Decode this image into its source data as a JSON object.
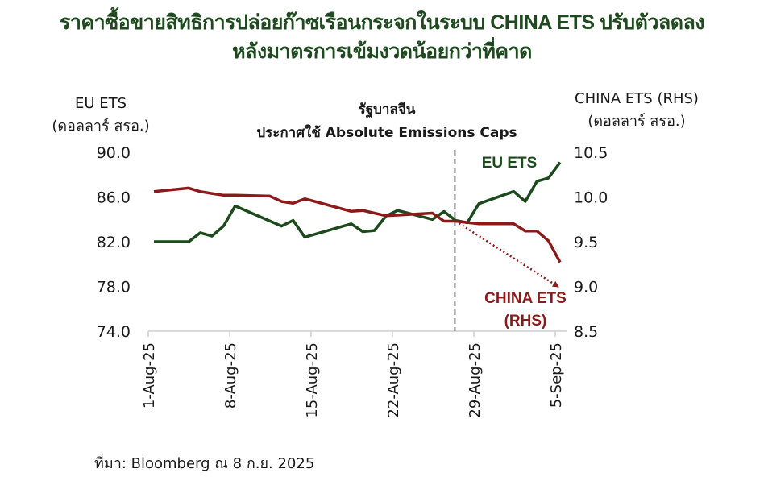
{
  "title_line1": "ราคาซื้อขายสิทธิการปล่อยก๊าซเรือนกระจกในระบบ CHINA ETS  ปรับตัวลดลง",
  "title_line2": "หลังมาตรการเข้มงวดน้อยกว่าที่คาด",
  "left_axis_title": [
    "EU ETS",
    "(ดอลลาร์ สรอ.)"
  ],
  "right_axis_title": [
    "CHINA ETS (RHS)",
    "(ดอลลาร์ สรอ.)"
  ],
  "event_annotation": [
    "รัฐบาลจีน",
    "ประกาศใช้ Absolute Emissions Caps"
  ],
  "source": "ที่มา: Bloomberg ณ 8 ก.ย. 2025",
  "chart_data": {
    "type": "line",
    "title": "ราคาซื้อขายสิทธิการปล่อยก๊าซเรือนกระจกในระบบ CHINA ETS ปรับตัวลดลง หลังมาตรการเข้มงวดน้อยกว่าที่คาด",
    "x_unit": "days since 1-Aug-25",
    "x_ticks": [
      {
        "day": 0,
        "label": "1-Aug-25"
      },
      {
        "day": 7,
        "label": "8-Aug-25"
      },
      {
        "day": 14,
        "label": "15-Aug-25"
      },
      {
        "day": 21,
        "label": "22-Aug-25"
      },
      {
        "day": 28,
        "label": "29-Aug-25"
      },
      {
        "day": 35,
        "label": "5-Sep-25"
      }
    ],
    "xlim": [
      -0.5,
      35.5
    ],
    "y_left": {
      "label": "EU ETS (ดอลลาร์ สรอ.)",
      "ylim": [
        74,
        90
      ],
      "ticks": [
        "90.0",
        "86.0",
        "82.0",
        "78.0",
        "74.0"
      ],
      "tick_values": [
        90,
        86,
        82,
        78,
        74
      ]
    },
    "y_right": {
      "label": "CHINA ETS (RHS) (ดอลลาร์ สรอ.)",
      "ylim": [
        8.5,
        10.5
      ],
      "ticks": [
        "10.5",
        "10.0",
        "9.5",
        "9.0",
        "8.5"
      ],
      "tick_values": [
        10.5,
        10.0,
        9.5,
        9.0,
        8.5
      ]
    },
    "event_day": 26,
    "series": [
      {
        "name": "EU ETS",
        "axis": "left",
        "color": "#1c4a1c",
        "label": "EU ETS",
        "x": [
          0,
          3,
          4,
          5,
          6,
          7,
          11,
          12,
          13,
          17,
          18,
          19,
          20,
          21,
          24,
          25,
          26,
          27,
          28,
          31,
          32,
          33,
          34,
          35
        ],
        "y": [
          82.0,
          82.0,
          82.8,
          82.5,
          83.4,
          85.2,
          83.4,
          83.9,
          82.4,
          83.6,
          82.9,
          83.0,
          84.3,
          84.8,
          84.0,
          84.7,
          83.9,
          83.7,
          85.4,
          86.5,
          85.6,
          87.4,
          87.7,
          89.1
        ]
      },
      {
        "name": "CHINA ETS (RHS)",
        "axis": "right",
        "color": "#8b1a1a",
        "label": [
          "CHINA ETS",
          "(RHS)"
        ],
        "x": [
          0,
          3,
          4,
          5,
          6,
          7,
          10,
          11,
          12,
          13,
          15,
          17,
          18,
          19,
          20,
          24,
          25,
          26,
          28,
          31,
          32,
          33,
          34,
          35
        ],
        "y": [
          10.06,
          10.1,
          10.06,
          10.04,
          10.02,
          10.02,
          10.01,
          9.95,
          9.93,
          9.98,
          9.91,
          9.84,
          9.85,
          9.82,
          9.79,
          9.82,
          9.73,
          9.73,
          9.7,
          9.7,
          9.62,
          9.62,
          9.51,
          9.27
        ]
      }
    ],
    "trend_arrow": {
      "axis": "right",
      "from": {
        "day": 26,
        "value": 9.73
      },
      "to": {
        "day": 34.8,
        "value": 9.0
      },
      "color": "#8b1a1a"
    }
  }
}
